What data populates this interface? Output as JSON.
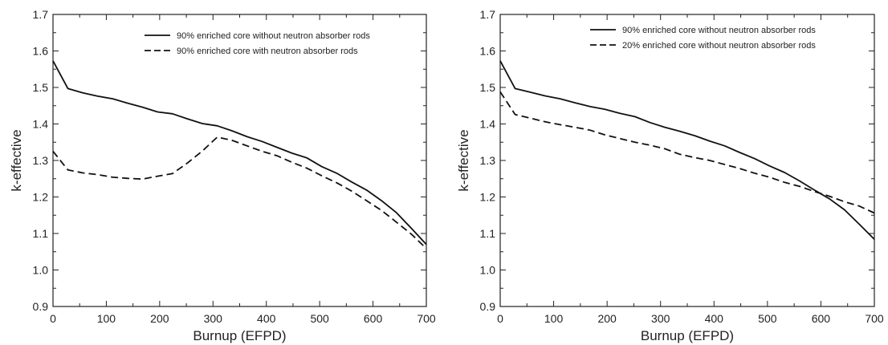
{
  "chart_data": [
    {
      "type": "line",
      "xlabel": "Burnup (EFPD)",
      "ylabel": "k-effective",
      "xlim": [
        0,
        700
      ],
      "ylim": [
        0.9,
        1.7
      ],
      "xticks": [
        0,
        100,
        200,
        300,
        400,
        500,
        600,
        700
      ],
      "yticks": [
        0.9,
        1.0,
        1.1,
        1.2,
        1.3,
        1.4,
        1.5,
        1.6,
        1.7
      ],
      "ytick_labels": [
        "0.9",
        "1.0",
        "1.1",
        "1.2",
        "1.3",
        "1.4",
        "1.5",
        "1.6",
        "1.7"
      ],
      "grid": false,
      "legend_position": "top-right",
      "series": [
        {
          "name": "90% enriched core without neutron absorber rods",
          "style": "solid",
          "color": "#111111",
          "x": [
            0,
            28,
            56,
            84,
            112,
            140,
            168,
            196,
            224,
            252,
            280,
            308,
            336,
            364,
            392,
            420,
            448,
            476,
            504,
            532,
            560,
            588,
            616,
            644,
            672,
            700
          ],
          "y": [
            1.573,
            1.497,
            1.485,
            1.476,
            1.469,
            1.457,
            1.446,
            1.433,
            1.428,
            1.414,
            1.401,
            1.395,
            1.381,
            1.365,
            1.352,
            1.336,
            1.32,
            1.307,
            1.283,
            1.265,
            1.241,
            1.219,
            1.19,
            1.157,
            1.114,
            1.07
          ]
        },
        {
          "name": "90% enriched core with neutron absorber rods",
          "style": "dashed",
          "color": "#111111",
          "x": [
            0,
            28,
            56,
            84,
            112,
            140,
            168,
            196,
            224,
            252,
            280,
            308,
            336,
            364,
            392,
            420,
            448,
            476,
            504,
            532,
            560,
            588,
            616,
            644,
            672,
            700
          ],
          "y": [
            1.325,
            1.274,
            1.266,
            1.261,
            1.254,
            1.251,
            1.249,
            1.257,
            1.264,
            1.293,
            1.326,
            1.364,
            1.355,
            1.34,
            1.325,
            1.313,
            1.295,
            1.279,
            1.258,
            1.239,
            1.216,
            1.19,
            1.163,
            1.131,
            1.098,
            1.059
          ]
        }
      ]
    },
    {
      "type": "line",
      "xlabel": "Burnup (EFPD)",
      "ylabel": "k-effective",
      "xlim": [
        0,
        700
      ],
      "ylim": [
        0.9,
        1.7
      ],
      "xticks": [
        0,
        100,
        200,
        300,
        400,
        500,
        600,
        700
      ],
      "yticks": [
        0.9,
        1.0,
        1.1,
        1.2,
        1.3,
        1.4,
        1.5,
        1.6,
        1.7
      ],
      "ytick_labels": [
        "0.9",
        "1.0",
        "1.1",
        "1.2",
        "1.3",
        "1.4",
        "1.5",
        "1.6",
        "1.7"
      ],
      "grid": false,
      "legend_position": "top-right",
      "series": [
        {
          "name": "90% enriched core without neutron absorber rods",
          "style": "solid",
          "color": "#111111",
          "x": [
            0,
            28,
            56,
            84,
            112,
            140,
            168,
            196,
            224,
            252,
            280,
            308,
            336,
            364,
            392,
            420,
            448,
            476,
            504,
            532,
            560,
            588,
            616,
            644,
            672,
            700
          ],
          "y": [
            1.573,
            1.497,
            1.487,
            1.477,
            1.469,
            1.458,
            1.448,
            1.44,
            1.429,
            1.42,
            1.404,
            1.391,
            1.38,
            1.368,
            1.353,
            1.34,
            1.322,
            1.305,
            1.285,
            1.267,
            1.244,
            1.219,
            1.195,
            1.165,
            1.125,
            1.084
          ]
        },
        {
          "name": "20% enriched core without neutron absorber rods",
          "style": "dashed",
          "color": "#111111",
          "x": [
            0,
            28,
            56,
            84,
            112,
            140,
            168,
            196,
            224,
            252,
            280,
            308,
            336,
            364,
            392,
            420,
            448,
            476,
            504,
            532,
            560,
            588,
            616,
            644,
            672,
            700
          ],
          "y": [
            1.488,
            1.426,
            1.416,
            1.406,
            1.398,
            1.391,
            1.383,
            1.37,
            1.36,
            1.35,
            1.342,
            1.332,
            1.317,
            1.308,
            1.3,
            1.289,
            1.278,
            1.265,
            1.254,
            1.24,
            1.229,
            1.215,
            1.202,
            1.187,
            1.175,
            1.156
          ]
        }
      ]
    }
  ]
}
